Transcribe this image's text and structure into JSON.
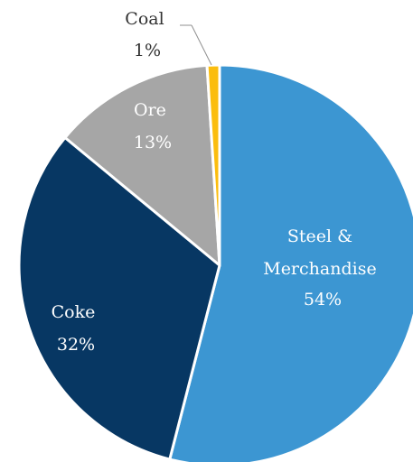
{
  "chart_data": {
    "type": "pie",
    "start_angle": "12 o'clock",
    "direction": "clockwise",
    "slices": [
      {
        "label": "Steel &",
        "label_line2": "Merchandise",
        "percent_label": "54%",
        "value": 54,
        "color": "#3c96d2",
        "text_color": "#ffffff"
      },
      {
        "label": "Coke",
        "percent_label": "32%",
        "value": 32,
        "color": "#073763",
        "text_color": "#ffffff"
      },
      {
        "label": "Ore",
        "percent_label": "13%",
        "value": 13,
        "color": "#a6a6a6",
        "text_color": "#ffffff"
      },
      {
        "label": "Coal",
        "percent_label": "1%",
        "value": 1,
        "color": "#fbbd0e",
        "text_color": "#333333"
      }
    ]
  }
}
